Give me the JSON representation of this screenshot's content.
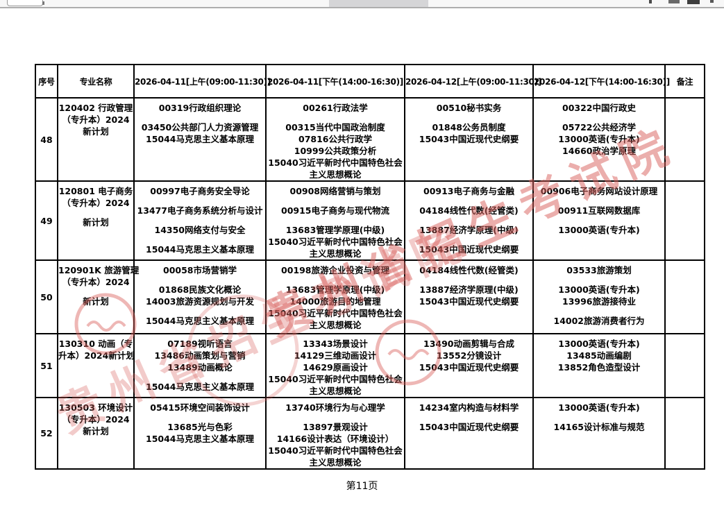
{
  "table": {
    "headers": [
      "序号",
      "专业名称",
      "2026-04-11[上午(09:00-11:30)]",
      "2026-04-11[下午(14:00-16:30)]",
      "2026-04-12[上午(09:00-11:30)]",
      "2026-04-12[下午(14:00-16:30)]",
      "备注"
    ],
    "rows": [
      {
        "seq": "48",
        "major": [
          "120402 行政管理",
          "（专升本）2024",
          "新计划"
        ],
        "sessions": [
          [
            "00319行政组织理论",
            "",
            "03450公共部门人力资源管理",
            "15044马克思主义基本原理"
          ],
          [
            "00261行政法学",
            "",
            "00315当代中国政治制度",
            "07816公共行政学",
            "10999公共政策分析",
            "15040习近平新时代中国特色社会",
            "主义思想概论"
          ],
          [
            "00510秘书实务",
            "",
            "01848公务员制度",
            "15043中国近现代史纲要"
          ],
          [
            "00322中国行政史",
            "",
            "05722公共经济学",
            "13000英语(专升本)",
            "14660政治学原理"
          ]
        ],
        "remark": ""
      },
      {
        "seq": "49",
        "major": [
          "120801 电子商务",
          "（专升本）2024",
          "",
          "新计划"
        ],
        "sessions": [
          [
            "00997电子商务安全导论",
            "",
            "13477电子商务系统分析与设计",
            "",
            "14350网络支付与安全",
            "",
            "15044马克思主义基本原理"
          ],
          [
            "00908网络营销与策划",
            "",
            "00915电子商务与现代物流",
            "",
            "13683管理学原理(中级)",
            "15040习近平新时代中国特色社会",
            "主义思想概论"
          ],
          [
            "00913电子商务与金融",
            "",
            "04184线性代数(经管类)",
            "",
            "13887经济学原理(中级)",
            "",
            "15043中国近现代史纲要"
          ],
          [
            "00906电子商务网站设计原理",
            "",
            "00911互联网数据库",
            "",
            "13000英语(专升本)"
          ]
        ],
        "remark": ""
      },
      {
        "seq": "50",
        "major": [
          "120901K 旅游管理",
          "（专升本）2024",
          "",
          "新计划"
        ],
        "sessions": [
          [
            "00058市场营销学",
            "",
            "01868民族文化概论",
            "14003旅游资源规划与开发",
            "",
            "15044马克思主义基本原理"
          ],
          [
            "00198旅游企业投资与管理",
            "",
            "13683管理学原理(中级)",
            "14000旅游目的地管理",
            "15040习近平新时代中国特色社会",
            "主义思想概论"
          ],
          [
            "04184线性代数(经管类)",
            "",
            "13887经济学原理(中级)",
            "15043中国近现代史纲要"
          ],
          [
            "03533旅游策划",
            "",
            "13000英语(专升本)",
            "13996旅游接待业",
            "",
            "14002旅游消费者行为"
          ]
        ],
        "remark": ""
      },
      {
        "seq": "51",
        "major": [
          "130310 动画（专",
          "升本）2024新计划"
        ],
        "sessions": [
          [
            "07189视听语言",
            "13486动画策划与营销",
            "13489动画概论",
            "",
            "15044马克思主义基本原理"
          ],
          [
            "13343场景设计",
            "14129三维动画设计",
            "14629原画设计",
            "15040习近平新时代中国特色社会",
            "主义思想概论"
          ],
          [
            "13490动画剪辑与合成",
            "13552分镜设计",
            "15043中国近现代史纲要"
          ],
          [
            "13000英语(专升本)",
            "13485动画编剧",
            "13852角色造型设计"
          ]
        ],
        "remark": ""
      },
      {
        "seq": "52",
        "major": [
          "130503 环境设计",
          "（专升本）2024",
          "新计划"
        ],
        "sessions": [
          [
            "05415环境空间装饰设计",
            "",
            "13685光与色彩",
            "15044马克思主义基本原理"
          ],
          [
            "13740环境行为与心理学",
            "",
            "13897景观设计",
            "14166设计表达（环境设计）",
            "15040习近平新时代中国特色社会",
            "主义思想概论"
          ],
          [
            "14234室内构造与材料学",
            "",
            "15043中国近现代史纲要"
          ],
          [
            "13000英语(专升本)",
            "",
            "14165设计标准与规范"
          ]
        ],
        "remark": ""
      }
    ]
  },
  "watermark": {
    "text": "贵州省招生考试院",
    "color": "#d9605c"
  },
  "footer": {
    "page_label": "第11页"
  }
}
